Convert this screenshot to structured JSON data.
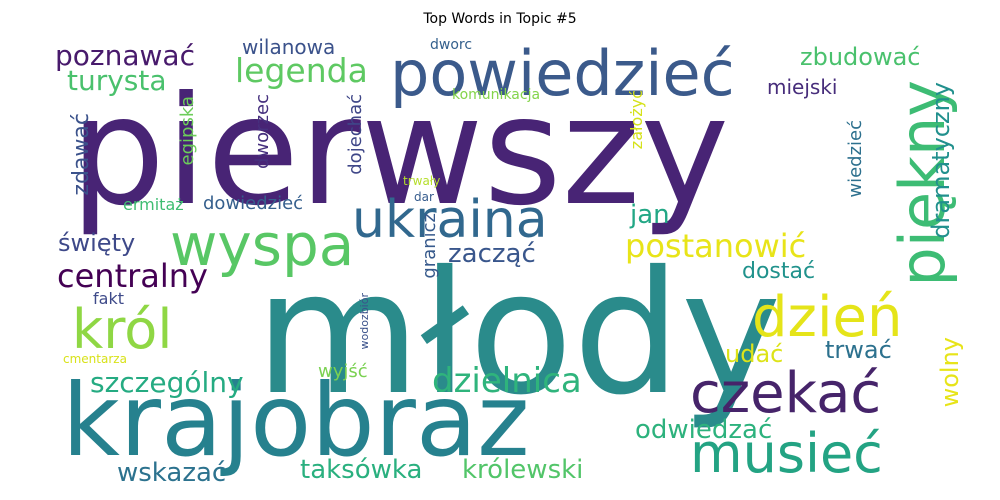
{
  "chart_data": {
    "type": "wordcloud",
    "title": "Top Words in Topic #5",
    "words": [
      {
        "text": "młody",
        "color": "#2a8b8b"
      },
      {
        "text": "pierwszy",
        "color": "#482475"
      },
      {
        "text": "krajobraz",
        "color": "#26818e"
      },
      {
        "text": "powiedzieć",
        "color": "#3b5a8b"
      },
      {
        "text": "piękny",
        "color": "#3dbc74"
      },
      {
        "text": "wyspa",
        "color": "#58c765"
      },
      {
        "text": "ukraina",
        "color": "#31688e"
      },
      {
        "text": "czekać",
        "color": "#46246a"
      },
      {
        "text": "musieć",
        "color": "#23a383"
      },
      {
        "text": "dzień",
        "color": "#e5e419"
      },
      {
        "text": "król",
        "color": "#8fd744"
      },
      {
        "text": "dzielnica",
        "color": "#2fb47c"
      },
      {
        "text": "legenda",
        "color": "#5ec962"
      },
      {
        "text": "postanowić",
        "color": "#e8e419"
      },
      {
        "text": "centralny",
        "color": "#440154"
      },
      {
        "text": "szczególny",
        "color": "#25ab82"
      },
      {
        "text": "turysta",
        "color": "#4ac16d"
      },
      {
        "text": "poznawać",
        "color": "#481a6c"
      },
      {
        "text": "zbudować",
        "color": "#4ac16d"
      },
      {
        "text": "dramatyczny",
        "color": "#21908d"
      },
      {
        "text": "zacząć",
        "color": "#39568c"
      },
      {
        "text": "jan",
        "color": "#22a785"
      },
      {
        "text": "odwiedzać",
        "color": "#2db27d"
      },
      {
        "text": "królewski",
        "color": "#52c569"
      },
      {
        "text": "taksówka",
        "color": "#2ab07f"
      },
      {
        "text": "wskazać",
        "color": "#2c728e"
      },
      {
        "text": "trwać",
        "color": "#2c718e"
      },
      {
        "text": "udać",
        "color": "#dde318"
      },
      {
        "text": "wolny",
        "color": "#e7e419"
      },
      {
        "text": "dostać",
        "color": "#20928c"
      },
      {
        "text": "święty",
        "color": "#3e4989"
      },
      {
        "text": "zdawać",
        "color": "#3b528b"
      },
      {
        "text": "miejski",
        "color": "#472d7b"
      },
      {
        "text": "wiedzieć",
        "color": "#2d708e"
      },
      {
        "text": "fakt",
        "color": "#3e4a89"
      },
      {
        "text": "wilanowa",
        "color": "#3b528b"
      },
      {
        "text": "dowiedzieć",
        "color": "#355f8d"
      },
      {
        "text": "ermitaż",
        "color": "#40bd72"
      },
      {
        "text": "egipska",
        "color": "#6ccd5a"
      },
      {
        "text": "dworzec",
        "color": "#46307e"
      },
      {
        "text": "dojechać",
        "color": "#3f4788"
      },
      {
        "text": "granicz",
        "color": "#375a8c"
      },
      {
        "text": "wyjść",
        "color": "#7ad151"
      },
      {
        "text": "założyć",
        "color": "#d5e21a"
      },
      {
        "text": "dworc",
        "color": "#34608d"
      },
      {
        "text": "komunikacja",
        "color": "#84d44b"
      },
      {
        "text": "trwały",
        "color": "#b5de2b"
      },
      {
        "text": "dar",
        "color": "#365c8d"
      },
      {
        "text": "wodozbiór",
        "color": "#3b528b"
      },
      {
        "text": "cmentarza",
        "color": "#d8e219"
      }
    ]
  }
}
